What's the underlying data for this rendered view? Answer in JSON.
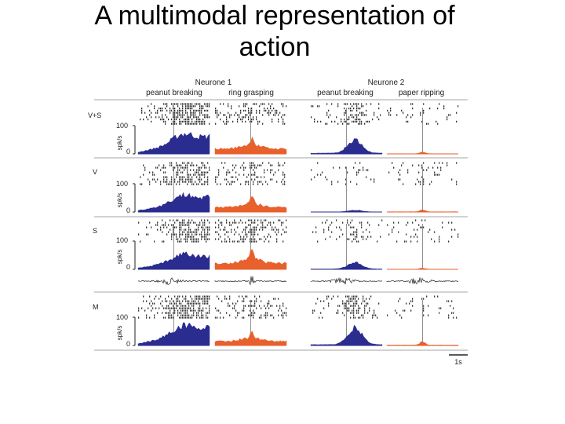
{
  "slide": {
    "title_line1": "A multimodal representation of",
    "title_line2": "action"
  },
  "figure": {
    "neurons": [
      {
        "name": "Neurone 1",
        "actions": [
          {
            "label": "peanut breaking",
            "color": "#2b2c8f",
            "shape": "broad"
          },
          {
            "label": "ring grasping",
            "color": "#e8602c",
            "shape": "spike"
          }
        ]
      },
      {
        "name": "Neurone 2",
        "actions": [
          {
            "label": "peanut breaking",
            "color": "#2b2c8f",
            "shape": "burst"
          },
          {
            "label": "paper ripping",
            "color": "#e8602c",
            "shape": "small"
          }
        ]
      }
    ],
    "conditions": [
      {
        "label": "V+S",
        "gains": [
          1.0,
          0.6,
          0.65,
          0.12
        ]
      },
      {
        "label": "V",
        "gains": [
          0.85,
          0.55,
          0.08,
          0.15
        ]
      },
      {
        "label": "S",
        "gains": [
          0.75,
          0.7,
          0.3,
          0.08
        ]
      },
      {
        "label": "M",
        "gains": [
          1.0,
          0.5,
          0.8,
          0.25
        ]
      }
    ],
    "y_axis": {
      "label": "spk/s",
      "tick_max": "100",
      "tick_min": "0",
      "max_value": 100
    },
    "scale_bar_label": "1s"
  }
}
